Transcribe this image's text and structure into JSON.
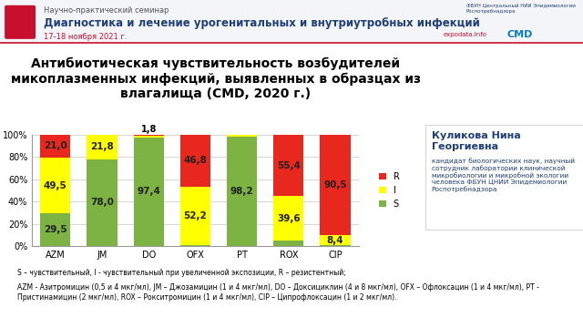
{
  "header": {
    "seminar": "Научно-практический семинар",
    "title": "Диагностика и лечение урогенитальных и внутриутробных инфекций",
    "dates": "17-18 ноября 2021 г.",
    "organizer": "ФБУН Центральный НИИ Эпидемиологии Роспотребнадзора",
    "logos": [
      "expodata.info",
      "CMD"
    ]
  },
  "chart_data": {
    "type": "bar",
    "stacked": true,
    "title": "Антибиотическая чувствительность возбудителей микоплазменных инфекций, выявленных в образцах из влагалища (CMD, 2020 г.)",
    "categories": [
      "AZM",
      "JM",
      "DO",
      "OFX",
      "PT",
      "ROX",
      "CIP"
    ],
    "series": [
      {
        "name": "S",
        "color": "#7cb342",
        "values": [
          29.5,
          78.0,
          97.4,
          1.0,
          98.2,
          5.0,
          1.1
        ],
        "value_labels": [
          "29,5",
          "78,0",
          "97,4",
          null,
          "98,2",
          null,
          null
        ]
      },
      {
        "name": "I",
        "color": "#ffff00",
        "values": [
          49.5,
          21.8,
          1.8,
          52.2,
          1.8,
          39.6,
          8.4
        ],
        "value_labels": [
          "49,5",
          "21,8",
          "1,8",
          "52,2",
          null,
          "39,6",
          "8,4"
        ]
      },
      {
        "name": "R",
        "color": "#e8281e",
        "values": [
          21.0,
          0.2,
          0.8,
          46.8,
          0.0,
          55.4,
          90.5
        ],
        "value_labels": [
          "21,0",
          null,
          null,
          "46,8",
          null,
          "55,4",
          "90,5"
        ]
      }
    ],
    "ylim": [
      0,
      100
    ],
    "yticks": [
      {
        "value": 0,
        "label": "0%"
      },
      {
        "value": 20,
        "label": "20%"
      },
      {
        "value": 40,
        "label": "40%"
      },
      {
        "value": 60,
        "label": "60%"
      },
      {
        "value": 80,
        "label": "80%"
      },
      {
        "value": 100,
        "label": "100%"
      }
    ],
    "grid": true,
    "legend": "right",
    "data_labels": true
  },
  "footnotes": [
    "S – чувствительный, I - чувствительный при увеличенной экспозиции, R – резистентный;",
    "AZM - Азитромицин (0,5 и 4 мкг/мл), JM – Джозамицин (1 и 4 мкг/мл), DO – Доксициклин (4 и 8 мкг/мл), OFX – Офлоксацин (1 и 4 мкг/мл), PT - Пристинамицин (2 мкг/мл), ROX – Рокситромицин (1 и 4 мкг/мл), CIP – Ципрофлоксацин (1 и 2 мкг/мл)."
  ],
  "speaker": {
    "name": "Куликова Нина Георгиевна",
    "details": "кандидат биологических наук, научный сотрудник лаборатории клинической микробиологии и микробной экологии человека ФБУН ЦНИИ Эпидемиологии Роспотребнадзора"
  }
}
